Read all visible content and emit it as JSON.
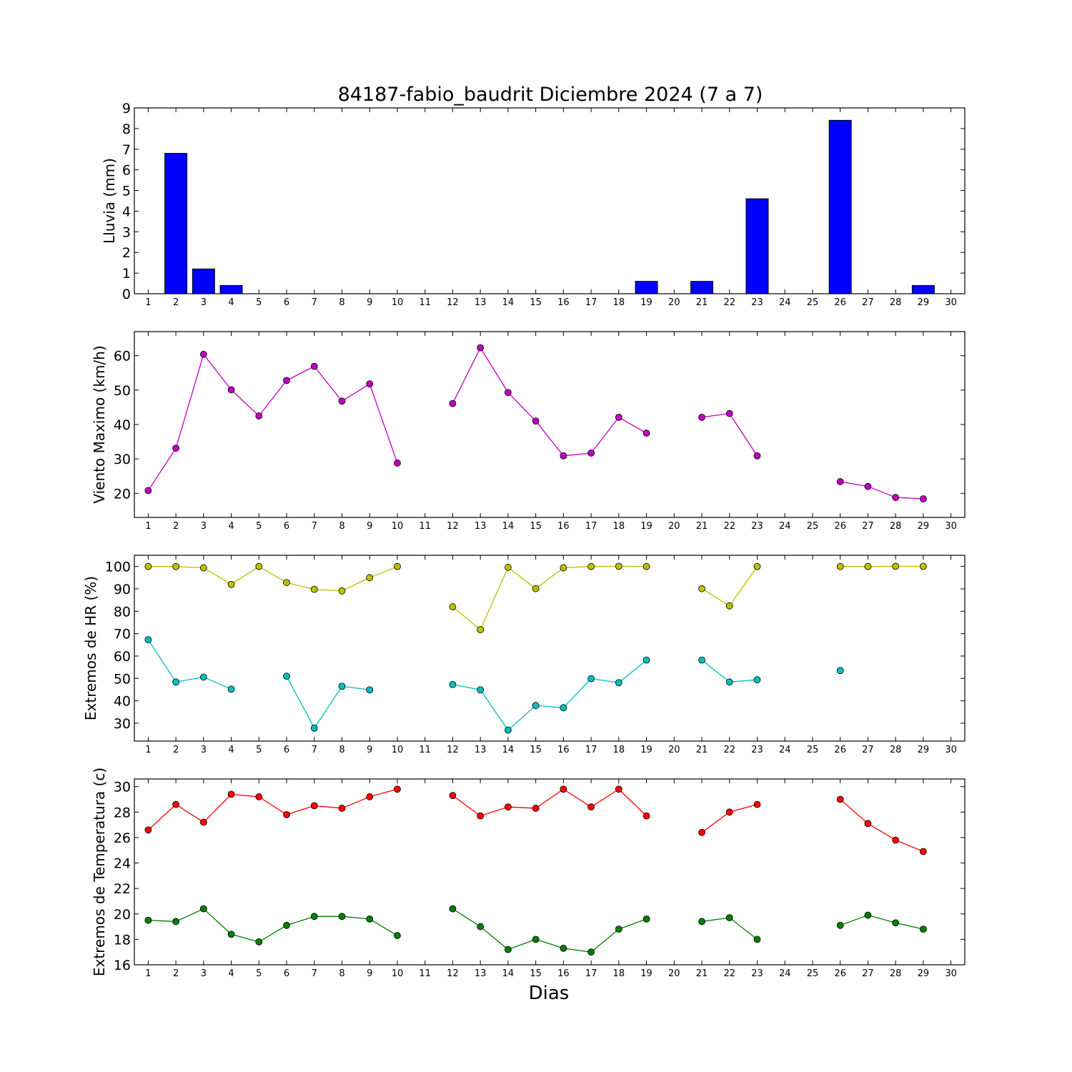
{
  "chart_data": [
    {
      "type": "bar",
      "title": "84187-fabio_baudrit Diciembre 2024  (7 a 7)",
      "ylabel": "Lluvia (mm)",
      "xlabel": "",
      "ylim": [
        0,
        9
      ],
      "yticks": [
        0,
        1,
        2,
        3,
        4,
        5,
        6,
        7,
        8,
        9
      ],
      "x": [
        1,
        2,
        3,
        4,
        5,
        6,
        7,
        8,
        9,
        10,
        11,
        12,
        13,
        14,
        15,
        16,
        17,
        18,
        19,
        20,
        21,
        22,
        23,
        24,
        25,
        26,
        27,
        28,
        29,
        30
      ],
      "series": [
        {
          "color": "#0000ff",
          "values": [
            0,
            6.8,
            1.2,
            0.4,
            0,
            0,
            0,
            0,
            0,
            0,
            0,
            0,
            0,
            0,
            0,
            0,
            0,
            0,
            0.6,
            0,
            0.6,
            0,
            4.6,
            0,
            0,
            8.4,
            0,
            0,
            0.4,
            0
          ]
        }
      ]
    },
    {
      "type": "line",
      "ylabel": "Viento Maximo (km/h)",
      "ylim": [
        13,
        67
      ],
      "yticks": [
        20,
        30,
        40,
        50,
        60
      ],
      "x": [
        1,
        2,
        3,
        4,
        5,
        6,
        7,
        8,
        9,
        10,
        11,
        12,
        13,
        14,
        15,
        16,
        17,
        18,
        19,
        20,
        21,
        22,
        23,
        24,
        25,
        26,
        27,
        28,
        29,
        30
      ],
      "series": [
        {
          "color": "#bf00bf",
          "values": [
            20.8,
            33.1,
            60.4,
            50.1,
            42.5,
            52.8,
            56.9,
            46.8,
            51.8,
            28.8,
            null,
            46.1,
            62.3,
            49.3,
            41.0,
            30.9,
            31.7,
            42.1,
            37.5,
            null,
            42.1,
            43.2,
            30.9,
            null,
            null,
            23.4,
            22.0,
            18.8,
            18.4,
            null
          ]
        }
      ]
    },
    {
      "type": "line",
      "ylabel": "Extremos de HR (%)",
      "ylim": [
        22,
        105
      ],
      "yticks": [
        30,
        40,
        50,
        60,
        70,
        80,
        90,
        100
      ],
      "x": [
        1,
        2,
        3,
        4,
        5,
        6,
        7,
        8,
        9,
        10,
        11,
        12,
        13,
        14,
        15,
        16,
        17,
        18,
        19,
        20,
        21,
        22,
        23,
        24,
        25,
        26,
        27,
        28,
        29,
        30
      ],
      "series": [
        {
          "color": "#bfbf00",
          "values": [
            100,
            100,
            99.4,
            92,
            100,
            92.8,
            89.8,
            89.1,
            95,
            100,
            null,
            82,
            71.8,
            99.6,
            90.1,
            99.4,
            100,
            100.1,
            100,
            null,
            90.1,
            82.4,
            100,
            null,
            null,
            100,
            100,
            100.1,
            100.1,
            null
          ]
        },
        {
          "color": "#00bfbf",
          "values": [
            67.3,
            48.4,
            50.6,
            45.2,
            null,
            51,
            27.8,
            46.5,
            44.9,
            null,
            null,
            47.3,
            44.9,
            26.9,
            37.9,
            36.9,
            49.9,
            48.1,
            58.2,
            null,
            58.2,
            48.4,
            49.4,
            null,
            null,
            53.5,
            null,
            null,
            null,
            null
          ]
        }
      ]
    },
    {
      "type": "line",
      "ylabel": "Extremos de Temperatura (c)",
      "xlabel": "Dias",
      "ylim": [
        16,
        30.6
      ],
      "yticks": [
        16,
        18,
        20,
        22,
        24,
        26,
        28,
        30
      ],
      "x": [
        1,
        2,
        3,
        4,
        5,
        6,
        7,
        8,
        9,
        10,
        11,
        12,
        13,
        14,
        15,
        16,
        17,
        18,
        19,
        20,
        21,
        22,
        23,
        24,
        25,
        26,
        27,
        28,
        29,
        30
      ],
      "series": [
        {
          "color": "#ff0000",
          "values": [
            26.6,
            28.6,
            27.2,
            29.4,
            29.2,
            27.8,
            28.5,
            28.3,
            29.2,
            29.8,
            null,
            29.3,
            27.7,
            28.4,
            28.3,
            29.8,
            28.4,
            29.8,
            27.7,
            null,
            26.4,
            28.0,
            28.6,
            null,
            null,
            29.0,
            27.1,
            25.8,
            24.9,
            null
          ]
        },
        {
          "color": "#007f00",
          "values": [
            19.5,
            19.4,
            20.4,
            18.4,
            17.8,
            19.1,
            19.8,
            19.8,
            19.6,
            18.3,
            null,
            20.4,
            19.0,
            17.2,
            18.0,
            17.3,
            17.0,
            18.8,
            19.6,
            null,
            19.4,
            19.7,
            18.0,
            null,
            null,
            19.1,
            19.9,
            19.3,
            18.8,
            null
          ]
        }
      ]
    }
  ]
}
